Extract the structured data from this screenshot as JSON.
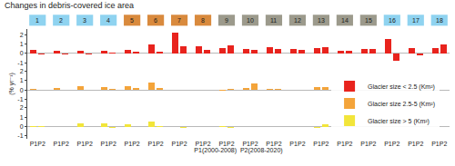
{
  "chart_data": {
    "type": "bar",
    "title": "Changes in debris-covered ice area",
    "ylabel": "(% yr⁻¹)",
    "xlabel": "P1(2000-2008)  P2(2008-2020)",
    "categories": [
      "1",
      "2",
      "3",
      "4",
      "5",
      "6",
      "7",
      "8",
      "9",
      "10",
      "11",
      "12",
      "13",
      "14",
      "15",
      "16",
      "17",
      "18"
    ],
    "category_colors": [
      "#8fd3f0",
      "#8fd3f0",
      "#8fd3f0",
      "#8fd3f0",
      "#d98a3d",
      "#d98a3d",
      "#d98a3d",
      "#d98a3d",
      "#9c9a8c",
      "#9c9a8c",
      "#9c9a8c",
      "#9c9a8c",
      "#9c9a8c",
      "#9c9a8c",
      "#9c9a8c",
      "#8fd3f0",
      "#8fd3f0",
      "#8fd3f0"
    ],
    "subcategories": [
      "P1",
      "P2"
    ],
    "ylim": [
      -1.3,
      2.6
    ],
    "yticks": [
      -1,
      0,
      1,
      2
    ],
    "legend": "right",
    "series": [
      {
        "name": "Glacier size < 2.5 (Km²)",
        "color": "#e8231d",
        "values": [
          [
            0.4,
            -0.1
          ],
          [
            0.3,
            -0.1
          ],
          [
            0.3,
            -0.1
          ],
          [
            0.3,
            0.1
          ],
          [
            0.4,
            0.2
          ],
          [
            1.0,
            0.2
          ],
          [
            2.2,
            0.8
          ],
          [
            0.8,
            0.4
          ],
          [
            0.6,
            0.9
          ],
          [
            0.5,
            0.4
          ],
          [
            0.7,
            0.5
          ],
          [
            0.5,
            0.4
          ],
          [
            0.6,
            0.7
          ],
          [
            0.3,
            0.3
          ],
          [
            0.5,
            0.5
          ],
          [
            1.5,
            -0.8
          ],
          [
            0.6,
            -0.2
          ],
          [
            0.6,
            1.0
          ]
        ]
      },
      {
        "name": "Glacier size 2.5-5 (Km²)",
        "color": "#f4a43a",
        "values": [
          [
            0.1,
            0.0
          ],
          [
            0.2,
            0.0
          ],
          [
            0.4,
            0.0
          ],
          [
            0.3,
            0.1
          ],
          [
            0.4,
            0.2
          ],
          [
            0.8,
            0.2
          ],
          [
            null,
            null
          ],
          [
            null,
            null
          ],
          [
            -0.1,
            0.1
          ],
          [
            0.2,
            0.7
          ],
          [
            0.1,
            0.1
          ],
          [
            null,
            null
          ],
          [
            0.3,
            0.3
          ],
          [
            null,
            null
          ],
          [
            null,
            null
          ],
          [
            null,
            null
          ],
          [
            null,
            null
          ],
          [
            null,
            null
          ]
        ]
      },
      {
        "name": "Glacier size > 5 (Km²)",
        "color": "#f2e53a",
        "values": [
          [
            0.1,
            0.1
          ],
          [
            0.0,
            0.0
          ],
          [
            0.3,
            0.0
          ],
          [
            0.3,
            -0.1
          ],
          [
            0.2,
            0.0
          ],
          [
            0.5,
            0.1
          ],
          [
            0.0,
            -0.1
          ],
          [
            null,
            null
          ],
          [
            0.1,
            -0.1
          ],
          [
            null,
            null
          ],
          [
            null,
            null
          ],
          [
            null,
            null
          ],
          [
            -0.1,
            0.2
          ],
          [
            null,
            null
          ],
          [
            null,
            null
          ],
          [
            null,
            null
          ],
          [
            null,
            null
          ],
          [
            null,
            null
          ]
        ]
      }
    ]
  }
}
